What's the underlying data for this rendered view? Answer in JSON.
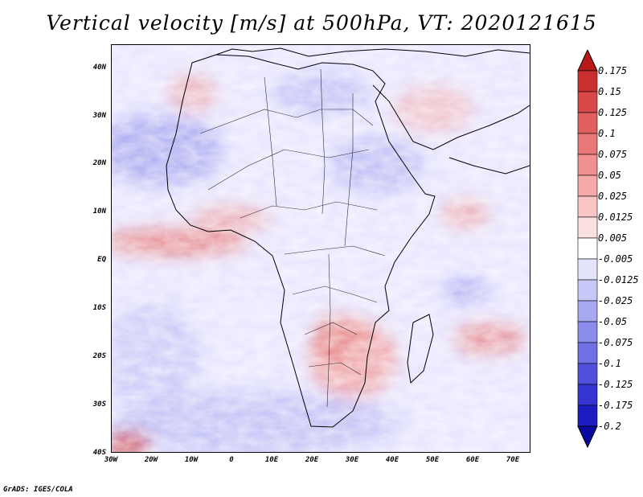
{
  "title": "Vertical velocity [m/s] at 500hPa, VT: 2020121615",
  "credit": "GrADS: IGES/COLA",
  "lat_labels": [
    "40N",
    "30N",
    "20N",
    "10N",
    "EQ",
    "10S",
    "20S",
    "30S",
    "40S"
  ],
  "lon_labels": [
    "30W",
    "20W",
    "10W",
    "0",
    "10E",
    "20E",
    "30E",
    "40E",
    "50E",
    "60E",
    "70E"
  ],
  "colorbar": {
    "levels": [
      "0.175",
      "0.15",
      "0.125",
      "0.1",
      "0.075",
      "0.05",
      "0.025",
      "0.0125",
      "0.005",
      "-0.005",
      "-0.0125",
      "-0.025",
      "-0.05",
      "-0.075",
      "-0.1",
      "-0.125",
      "-0.175",
      "-0.2"
    ],
    "colors": [
      "#b81818",
      "#c83030",
      "#d84848",
      "#e06060",
      "#e87878",
      "#f09090",
      "#f4a8a8",
      "#f8c4c4",
      "#fbe0e0",
      "#ffffff",
      "#e4e4fc",
      "#c8c8f8",
      "#a8a8f0",
      "#8c8cec",
      "#7070e4",
      "#5050dc",
      "#3434d0",
      "#1c1cc0",
      "#0a0aa0"
    ]
  }
}
